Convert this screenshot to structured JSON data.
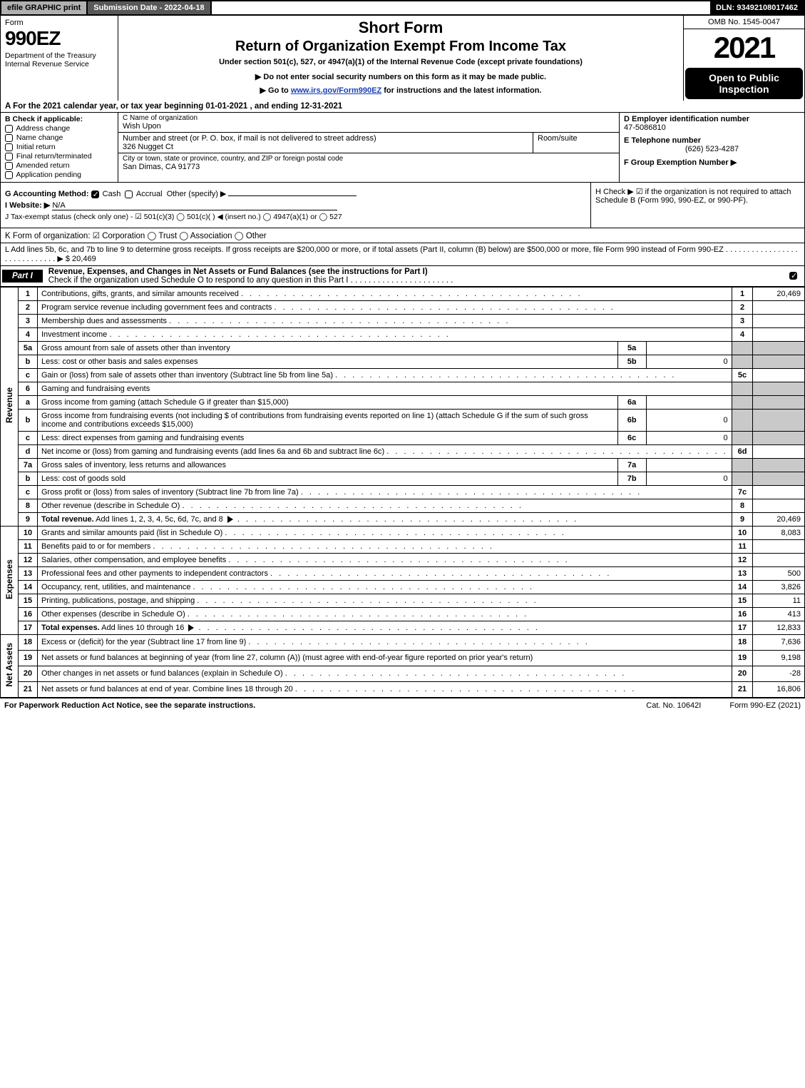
{
  "top": {
    "efile": "efile GRAPHIC print",
    "submission": "Submission Date - 2022-04-18",
    "dln": "DLN: 93492108017462"
  },
  "header": {
    "form_word": "Form",
    "form_num": "990EZ",
    "dept": "Department of the Treasury\nInternal Revenue Service",
    "short_form": "Short Form",
    "return_title": "Return of Organization Exempt From Income Tax",
    "under_section": "Under section 501(c), 527, or 4947(a)(1) of the Internal Revenue Code (except private foundations)",
    "do_not": "▶ Do not enter social security numbers on this form as it may be made public.",
    "goto_pre": "▶ Go to ",
    "goto_link": "www.irs.gov/Form990EZ",
    "goto_post": " for instructions and the latest information.",
    "omb": "OMB No. 1545-0047",
    "tax_year": "2021",
    "open_public": "Open to Public Inspection"
  },
  "lineA": "A  For the 2021 calendar year, or tax year beginning 01-01-2021 , and ending 12-31-2021",
  "boxB": {
    "header": "B  Check if applicable:",
    "items": [
      "Address change",
      "Name change",
      "Initial return",
      "Final return/terminated",
      "Amended return",
      "Application pending"
    ]
  },
  "boxC": {
    "name_lbl": "C Name of organization",
    "name": "Wish Upon",
    "street_lbl": "Number and street (or P. O. box, if mail is not delivered to street address)",
    "street": "326 Nugget Ct",
    "room_lbl": "Room/suite",
    "city_lbl": "City or town, state or province, country, and ZIP or foreign postal code",
    "city": "San Dimas, CA  91773"
  },
  "boxD": {
    "ein_lbl": "D Employer identification number",
    "ein": "47-5086810",
    "tel_lbl": "E Telephone number",
    "tel": "(626) 523-4287",
    "grp_lbl": "F Group Exemption Number  ▶"
  },
  "rowG": {
    "label": "G Accounting Method:",
    "cash": "Cash",
    "accrual": "Accrual",
    "other": "Other (specify) ▶"
  },
  "rowH": "H  Check ▶ ☑ if the organization is not required to attach Schedule B (Form 990, 990-EZ, or 990-PF).",
  "rowI": {
    "label": "I Website: ▶",
    "val": "N/A"
  },
  "rowJ": "J Tax-exempt status (check only one) - ☑ 501(c)(3)  ◯ 501(c)(  ) ◀ (insert no.)  ◯ 4947(a)(1) or  ◯ 527",
  "rowK": "K Form of organization:  ☑ Corporation  ◯ Trust  ◯ Association  ◯ Other",
  "rowL": {
    "text": "L Add lines 5b, 6c, and 7b to line 9 to determine gross receipts. If gross receipts are $200,000 or more, or if total assets (Part II, column (B) below) are $500,000 or more, file Form 990 instead of Form 990-EZ . . . . . . . . . . . . . . . . . . . . . . . . . . . . . ▶ $ ",
    "val": "20,469"
  },
  "partI": {
    "tab": "Part I",
    "title": "Revenue, Expenses, and Changes in Net Assets or Fund Balances (see the instructions for Part I)",
    "sub": "Check if the organization used Schedule O to respond to any question in this Part I . . . . . . . . . . . . . . . . . . . . . . ."
  },
  "sections": {
    "revenue": "Revenue",
    "expenses": "Expenses",
    "netassets": "Net Assets"
  },
  "lines": [
    {
      "sec": "rev",
      "n": "1",
      "d": "Contributions, gifts, grants, and similar amounts received",
      "r": "1",
      "v": "20,469"
    },
    {
      "sec": "rev",
      "n": "2",
      "d": "Program service revenue including government fees and contracts",
      "r": "2",
      "v": ""
    },
    {
      "sec": "rev",
      "n": "3",
      "d": "Membership dues and assessments",
      "r": "3",
      "v": ""
    },
    {
      "sec": "rev",
      "n": "4",
      "d": "Investment income",
      "r": "4",
      "v": ""
    },
    {
      "sec": "rev",
      "n": "5a",
      "d": "Gross amount from sale of assets other than inventory",
      "sub": "5a",
      "sv": "",
      "grey": true
    },
    {
      "sec": "rev",
      "n": "b",
      "d": "Less: cost or other basis and sales expenses",
      "sub": "5b",
      "sv": "0",
      "grey": true
    },
    {
      "sec": "rev",
      "n": "c",
      "d": "Gain or (loss) from sale of assets other than inventory (Subtract line 5b from line 5a)",
      "r": "5c",
      "v": ""
    },
    {
      "sec": "rev",
      "n": "6",
      "d": "Gaming and fundraising events",
      "grey": true,
      "noval": true
    },
    {
      "sec": "rev",
      "n": "a",
      "d": "Gross income from gaming (attach Schedule G if greater than $15,000)",
      "sub": "6a",
      "sv": "",
      "grey": true
    },
    {
      "sec": "rev",
      "n": "b",
      "d": "Gross income from fundraising events (not including $                    of contributions from fundraising events reported on line 1) (attach Schedule G if the sum of such gross income and contributions exceeds $15,000)",
      "sub": "6b",
      "sv": "0",
      "grey": true,
      "wrap": true
    },
    {
      "sec": "rev",
      "n": "c",
      "d": "Less: direct expenses from gaming and fundraising events",
      "sub": "6c",
      "sv": "0",
      "grey": true
    },
    {
      "sec": "rev",
      "n": "d",
      "d": "Net income or (loss) from gaming and fundraising events (add lines 6a and 6b and subtract line 6c)",
      "r": "6d",
      "v": ""
    },
    {
      "sec": "rev",
      "n": "7a",
      "d": "Gross sales of inventory, less returns and allowances",
      "sub": "7a",
      "sv": "",
      "grey": true
    },
    {
      "sec": "rev",
      "n": "b",
      "d": "Less: cost of goods sold",
      "sub": "7b",
      "sv": "0",
      "grey": true
    },
    {
      "sec": "rev",
      "n": "c",
      "d": "Gross profit or (loss) from sales of inventory (Subtract line 7b from line 7a)",
      "r": "7c",
      "v": ""
    },
    {
      "sec": "rev",
      "n": "8",
      "d": "Other revenue (describe in Schedule O)",
      "r": "8",
      "v": ""
    },
    {
      "sec": "rev",
      "n": "9",
      "d": "Total revenue. Add lines 1, 2, 3, 4, 5c, 6d, 7c, and 8",
      "r": "9",
      "v": "20,469",
      "bold": true,
      "arrow": true
    },
    {
      "sec": "exp",
      "n": "10",
      "d": "Grants and similar amounts paid (list in Schedule O)",
      "r": "10",
      "v": "8,083"
    },
    {
      "sec": "exp",
      "n": "11",
      "d": "Benefits paid to or for members",
      "r": "11",
      "v": ""
    },
    {
      "sec": "exp",
      "n": "12",
      "d": "Salaries, other compensation, and employee benefits",
      "r": "12",
      "v": ""
    },
    {
      "sec": "exp",
      "n": "13",
      "d": "Professional fees and other payments to independent contractors",
      "r": "13",
      "v": "500"
    },
    {
      "sec": "exp",
      "n": "14",
      "d": "Occupancy, rent, utilities, and maintenance",
      "r": "14",
      "v": "3,826"
    },
    {
      "sec": "exp",
      "n": "15",
      "d": "Printing, publications, postage, and shipping",
      "r": "15",
      "v": "11"
    },
    {
      "sec": "exp",
      "n": "16",
      "d": "Other expenses (describe in Schedule O)",
      "r": "16",
      "v": "413"
    },
    {
      "sec": "exp",
      "n": "17",
      "d": "Total expenses. Add lines 10 through 16",
      "r": "17",
      "v": "12,833",
      "bold": true,
      "arrow": true
    },
    {
      "sec": "net",
      "n": "18",
      "d": "Excess or (deficit) for the year (Subtract line 17 from line 9)",
      "r": "18",
      "v": "7,636"
    },
    {
      "sec": "net",
      "n": "19",
      "d": "Net assets or fund balances at beginning of year (from line 27, column (A)) (must agree with end-of-year figure reported on prior year's return)",
      "r": "19",
      "v": "9,198",
      "wrap": true
    },
    {
      "sec": "net",
      "n": "20",
      "d": "Other changes in net assets or fund balances (explain in Schedule O)",
      "r": "20",
      "v": "-28"
    },
    {
      "sec": "net",
      "n": "21",
      "d": "Net assets or fund balances at end of year. Combine lines 18 through 20",
      "r": "21",
      "v": "16,806"
    }
  ],
  "footer": {
    "left": "For Paperwork Reduction Act Notice, see the separate instructions.",
    "mid": "Cat. No. 10642I",
    "right": "Form 990-EZ (2021)"
  },
  "colors": {
    "grey_cell": "#c9c9c9",
    "efile_bg": "#b0b0b0",
    "subm_bg": "#595959",
    "link": "#1a3fb5"
  }
}
